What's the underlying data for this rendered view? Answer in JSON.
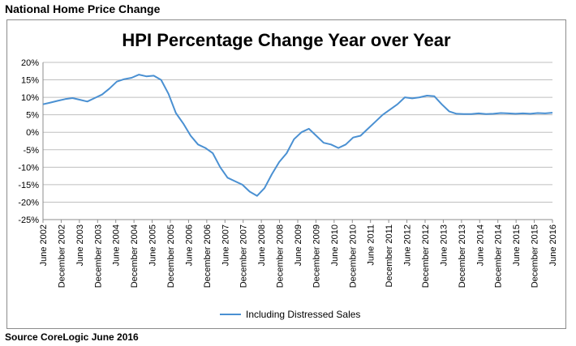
{
  "header_title": "National Home Price Change",
  "source_note": "Source CoreLogic June 2016",
  "chart_data": {
    "type": "line",
    "title": "HPI Percentage Change Year over Year",
    "xlabel": "",
    "ylabel": "",
    "ylim": [
      -25,
      20
    ],
    "y_ticks": [
      20,
      15,
      10,
      5,
      0,
      -5,
      -10,
      -15,
      -20,
      -25
    ],
    "y_tick_format": "{v}%",
    "grid": true,
    "legend_position": "bottom-center",
    "series_color": "#4a90d2",
    "x_tick_labels": [
      "June 2002",
      "December 2002",
      "June 2003",
      "December 2003",
      "June 2004",
      "December 2004",
      "June 2005",
      "December 2005",
      "June 2006",
      "December 2006",
      "June 2007",
      "December 2007",
      "June 2008",
      "December 2008",
      "June 2009",
      "December 2009",
      "June 2010",
      "December 2010",
      "June 2011",
      "December 2011",
      "June 2012",
      "December 2012",
      "June 2013",
      "December 2013",
      "June 2014",
      "December 2014",
      "June 2015",
      "December 2015",
      "June 2016"
    ],
    "series": [
      {
        "name": "Including Distressed Sales",
        "values": [
          8.0,
          8.5,
          9.0,
          9.5,
          9.8,
          9.3,
          8.8,
          9.8,
          10.8,
          12.5,
          14.5,
          15.2,
          15.6,
          16.5,
          16.0,
          16.2,
          15.0,
          11.0,
          5.5,
          2.5,
          -1.0,
          -3.5,
          -4.5,
          -6.0,
          -10.0,
          -13.0,
          -14.0,
          -15.0,
          -17.0,
          -18.2,
          -16.0,
          -12.0,
          -8.5,
          -6.0,
          -2.0,
          0.0,
          1.0,
          -1.0,
          -3.0,
          -3.5,
          -4.5,
          -3.5,
          -1.5,
          -1.0,
          1.0,
          3.0,
          5.0,
          6.5,
          8.0,
          10.0,
          9.7,
          10.0,
          10.5,
          10.3,
          8.0,
          6.0,
          5.3,
          5.2,
          5.2,
          5.4,
          5.2,
          5.3,
          5.5,
          5.4,
          5.3,
          5.4,
          5.3,
          5.5,
          5.4,
          5.6
        ]
      }
    ]
  }
}
